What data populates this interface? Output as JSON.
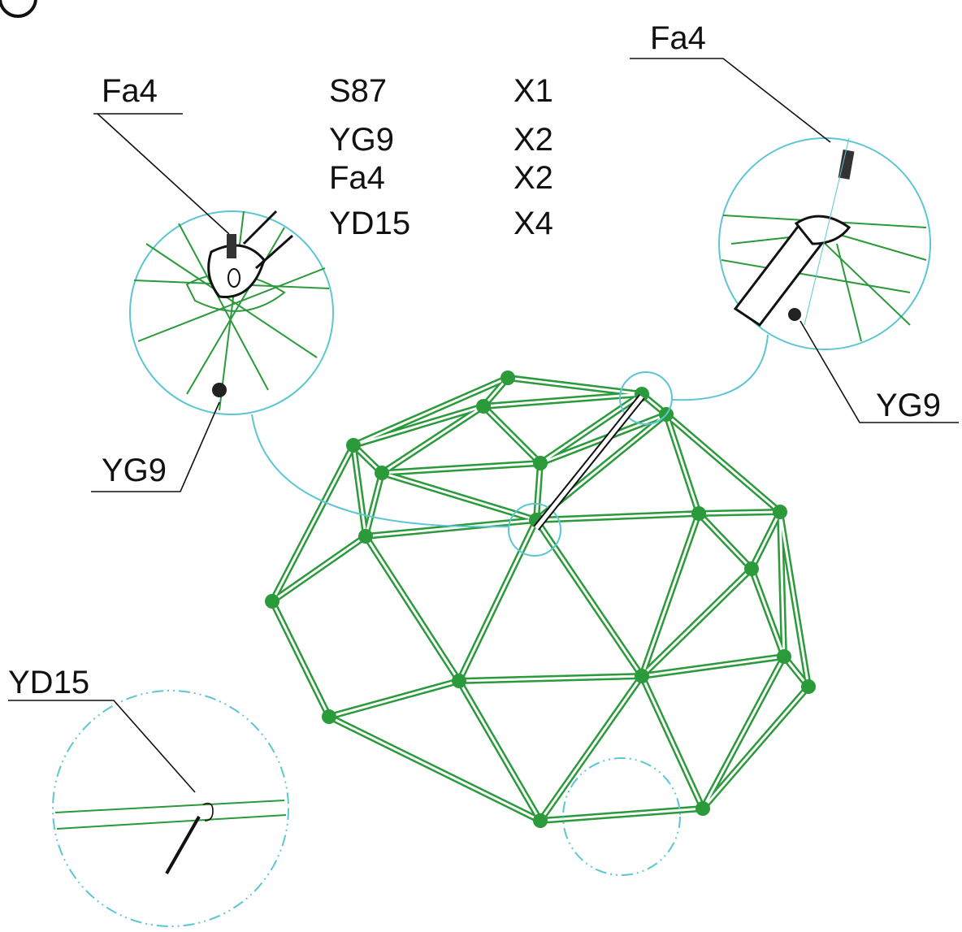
{
  "parts_list": [
    {
      "part": "S87",
      "qty": "X1"
    },
    {
      "part": "YG9",
      "qty": "X2"
    },
    {
      "part": "Fa4",
      "qty": "X2"
    },
    {
      "part": "YD15",
      "qty": "X4"
    }
  ],
  "callouts": [
    {
      "label": "Fa4"
    },
    {
      "label": "YG9"
    },
    {
      "label": "Fa4"
    },
    {
      "label": "YG9"
    },
    {
      "label": "YD15"
    }
  ]
}
